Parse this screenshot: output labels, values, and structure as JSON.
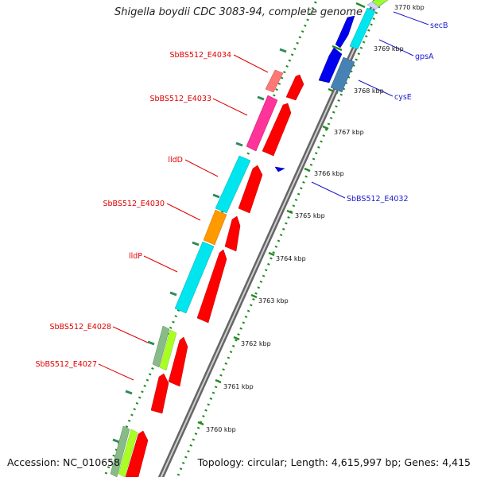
{
  "title": "Shigella boydii CDC 3083-94, complete genome",
  "footer": {
    "accession": "Accession: NC_010658",
    "summary": "Topology: circular; Length: 4,615,997 bp; Genes: 4,415"
  },
  "ticks": [
    "3770 kbp",
    "3769 kbp",
    "3768 kbp",
    "3767 kbp",
    "3766 kbp",
    "3765 kbp",
    "3764 kbp",
    "3763 kbp",
    "3762 kbp",
    "3761 kbp",
    "3760 kbp"
  ],
  "gene_labels_left": [
    "SbBS512_E4034",
    "SbBS512_E4033",
    "lldD",
    "SbBS512_E4030",
    "lldP",
    "SbBS512_E4028",
    "SbBS512_E4027"
  ],
  "gene_labels_right": [
    "secB",
    "gpsA",
    "cysE",
    "SbBS512_E4032"
  ],
  "colors": {
    "forward_arrow": "#ff0000",
    "reverse_arrow": "#0000ff",
    "cyan_feature": "#00e5ee",
    "pink_feature": "#ff3399",
    "orange_feature": "#ff9900",
    "light_red_feature": "#ff7777",
    "sage_feature": "#88bb88",
    "yellowgreen_feature": "#aaff22",
    "steel_feature": "#4682b4",
    "backbone": "#888888",
    "green_dash": "#228b22"
  }
}
